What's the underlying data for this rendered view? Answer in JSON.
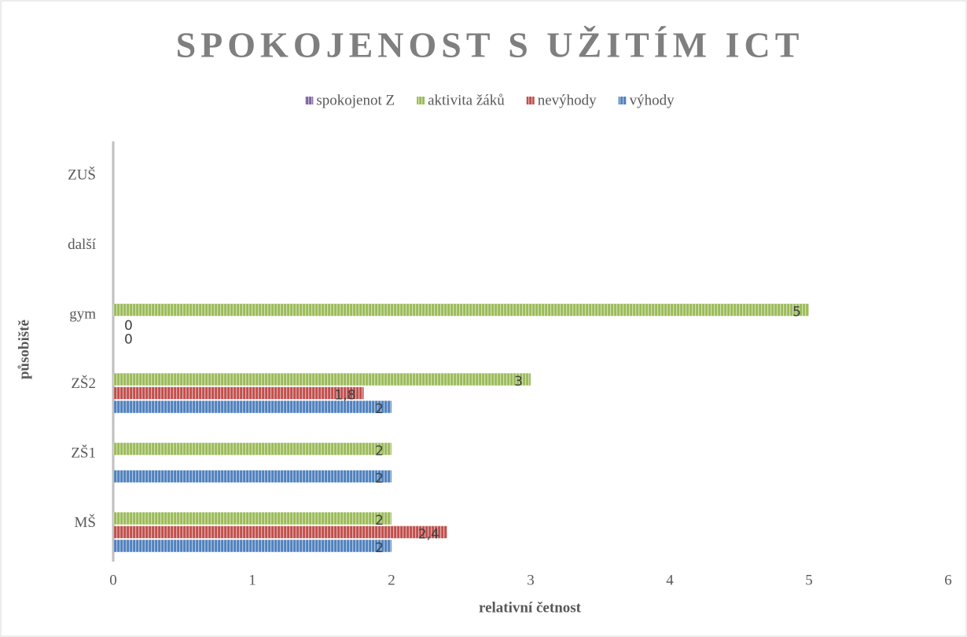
{
  "chart_data": {
    "type": "bar",
    "orientation": "horizontal",
    "title": "SPOKOJENOST S UŽITÍM ICT",
    "x_label": "relativní četnost",
    "y_label": "působiště",
    "categories": [
      "MŠ",
      "ZŠ1",
      "ZŠ2",
      "gym",
      "další",
      "ZUŠ"
    ],
    "series": [
      {
        "name": "spokojenot Z",
        "color": "#8064a2",
        "values": [
          null,
          null,
          null,
          null,
          null,
          null
        ]
      },
      {
        "name": "aktivita žáků",
        "color": "#9bbb59",
        "values": [
          2,
          2,
          3,
          5,
          null,
          null
        ]
      },
      {
        "name": "nevýhody",
        "color": "#c0504d",
        "values": [
          2.4,
          null,
          1.8,
          0,
          null,
          null
        ],
        "value_labels": [
          "2,4",
          null,
          "1,8",
          "0",
          null,
          null
        ]
      },
      {
        "name": "výhody",
        "color": "#4f81bd",
        "values": [
          2,
          2,
          2,
          0,
          null,
          null
        ]
      }
    ],
    "xlim": [
      0,
      6
    ],
    "xticks": [
      0,
      1,
      2,
      3,
      4,
      5,
      6
    ],
    "grid": false,
    "legend": "top"
  }
}
